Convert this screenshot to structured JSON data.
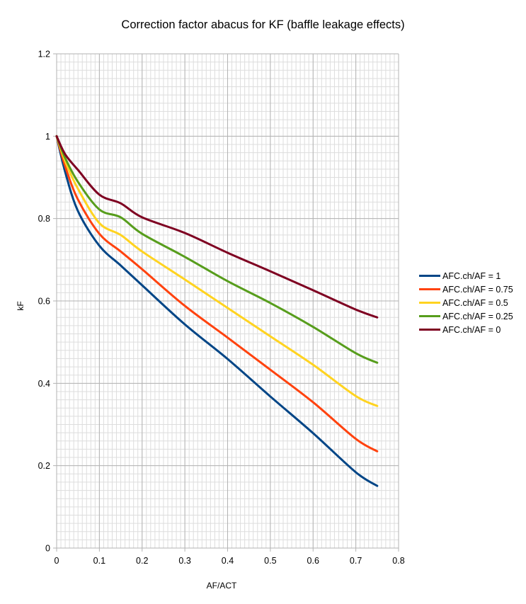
{
  "chart_data": {
    "type": "line",
    "title": "Correction factor abacus for KF (baffle leakage effects)",
    "xlabel": "AF/ACT",
    "ylabel": "kF",
    "xlim": [
      0,
      0.8
    ],
    "ylim": [
      0,
      1.2
    ],
    "x_ticks": [
      "0",
      "0.1",
      "0.2",
      "0.3",
      "0.4",
      "0.5",
      "0.6",
      "0.7",
      "0.8"
    ],
    "y_ticks": [
      "0",
      "0.2",
      "0.4",
      "0.6",
      "0.8",
      "1",
      "1.2"
    ],
    "grid": {
      "major": true,
      "minor": true,
      "x_minor_step": 0.01,
      "y_minor_step": 0.02
    },
    "legend_position": "right",
    "x": [
      0,
      0.02,
      0.05,
      0.1,
      0.15,
      0.2,
      0.3,
      0.4,
      0.5,
      0.6,
      0.7,
      0.75
    ],
    "series": [
      {
        "name": "AFC.ch/AF = 1",
        "color": "#004586",
        "values": [
          1.0,
          0.913,
          0.818,
          0.734,
          0.686,
          0.638,
          0.543,
          0.459,
          0.368,
          0.279,
          0.184,
          0.151
        ]
      },
      {
        "name": "AFC.ch/AF = 0.75",
        "color": "#ff420e",
        "values": [
          1.0,
          0.927,
          0.846,
          0.763,
          0.72,
          0.677,
          0.588,
          0.511,
          0.433,
          0.354,
          0.265,
          0.235
        ]
      },
      {
        "name": "AFC.ch/AF = 0.5",
        "color": "#ffd320",
        "values": [
          1.0,
          0.939,
          0.872,
          0.789,
          0.76,
          0.72,
          0.652,
          0.583,
          0.514,
          0.445,
          0.369,
          0.345
        ]
      },
      {
        "name": "AFC.ch/AF = 0.25",
        "color": "#579d1c",
        "values": [
          1.0,
          0.947,
          0.889,
          0.822,
          0.803,
          0.763,
          0.707,
          0.648,
          0.595,
          0.537,
          0.473,
          0.45
        ]
      },
      {
        "name": "AFC.ch/AF = 0",
        "color": "#7e0021",
        "values": [
          1.0,
          0.956,
          0.918,
          0.858,
          0.837,
          0.803,
          0.765,
          0.717,
          0.672,
          0.626,
          0.579,
          0.56
        ]
      }
    ]
  }
}
